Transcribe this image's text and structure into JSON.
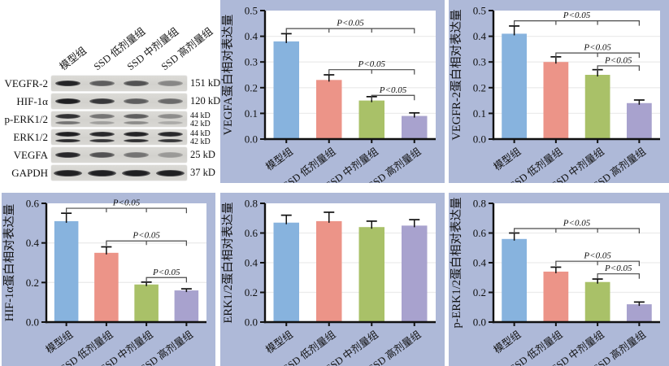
{
  "figure": {
    "background": "#ffffff",
    "panel_background": "#aeb9d8",
    "plot_background": "#ffffff",
    "gridline_color": "#ececec",
    "axis_color": "#111111",
    "bracket_color": "#4a4a4a"
  },
  "groups": [
    "模型组",
    "SSD 低剂量组",
    "SSD 中剂量组",
    "SSD 高剂量组"
  ],
  "bar_colors": [
    "#87b3de",
    "#ec9488",
    "#a9c168",
    "#a8a2ce"
  ],
  "blot": {
    "col_labels": [
      "模型组",
      "SSD 低剂量组",
      "SSD 中剂量组",
      "SSD 高剂量组"
    ],
    "rows": [
      {
        "label": "VEGFR-2",
        "kd_lines": [
          "151 kD"
        ],
        "bands": [
          [
            0.92
          ],
          [
            0.62
          ],
          [
            0.68
          ],
          [
            0.4
          ]
        ]
      },
      {
        "label": "HIF-1α",
        "kd_lines": [
          "120 kD"
        ],
        "bands": [
          [
            0.95
          ],
          [
            0.82
          ],
          [
            0.62
          ],
          [
            0.55
          ]
        ]
      },
      {
        "label": "p-ERK1/2",
        "kd_lines": [
          "44 kD",
          "42 kD"
        ],
        "bands": [
          [
            0.85,
            0.5
          ],
          [
            0.5,
            0.28
          ],
          [
            0.62,
            0.38
          ],
          [
            0.38,
            0.22
          ]
        ]
      },
      {
        "label": "ERK1/2",
        "kd_lines": [
          "44 kD",
          "42 kD"
        ],
        "bands": [
          [
            0.95,
            0.88
          ],
          [
            0.9,
            0.82
          ],
          [
            0.93,
            0.86
          ],
          [
            0.9,
            0.82
          ]
        ]
      },
      {
        "label": "VEGFA",
        "kd_lines": [
          "25 kD"
        ],
        "bands": [
          [
            0.9
          ],
          [
            0.68
          ],
          [
            0.5
          ],
          [
            0.3
          ]
        ]
      },
      {
        "label": "GAPDH",
        "kd_lines": [
          "37 kD"
        ],
        "bands": [
          [
            0.95
          ],
          [
            0.95
          ],
          [
            0.95
          ],
          [
            0.95
          ]
        ]
      }
    ]
  },
  "chart_data": [
    {
      "type": "bar",
      "panel": "vegfa",
      "title": "",
      "ylabel": "VEGFA蛋白相对表达量",
      "xlabel": "",
      "categories": [
        "模型组",
        "SSD 低剂量组",
        "SSD 中剂量组",
        "SSD 高剂量组"
      ],
      "values": [
        0.38,
        0.23,
        0.15,
        0.09
      ],
      "errors": [
        0.03,
        0.02,
        0.015,
        0.012
      ],
      "ylim": [
        0,
        0.5
      ],
      "ytick": 0.1,
      "grid": true,
      "legend": "none",
      "significance": [
        {
          "from": 0,
          "to": 3,
          "y": 0.43,
          "label": "P<0.05"
        },
        {
          "from": 1,
          "to": 3,
          "y": 0.27,
          "label": "P<0.05"
        },
        {
          "from": 2,
          "to": 3,
          "y": 0.17,
          "label": "P<0.05"
        }
      ]
    },
    {
      "type": "bar",
      "panel": "vegfr2",
      "title": "",
      "ylabel": "VEGFR-2蛋白相对表达量",
      "xlabel": "",
      "categories": [
        "模型组",
        "SSD 低剂量组",
        "SSD 中剂量组",
        "SSD 高剂量组"
      ],
      "values": [
        0.41,
        0.3,
        0.25,
        0.14
      ],
      "errors": [
        0.03,
        0.02,
        0.02,
        0.012
      ],
      "ylim": [
        0,
        0.5
      ],
      "ytick": 0.1,
      "grid": true,
      "legend": "none",
      "significance": [
        {
          "from": 0,
          "to": 3,
          "y": 0.46,
          "label": "P<0.05"
        },
        {
          "from": 1,
          "to": 3,
          "y": 0.335,
          "label": "P<0.05"
        },
        {
          "from": 2,
          "to": 3,
          "y": 0.285,
          "label": "P<0.05"
        }
      ]
    },
    {
      "type": "bar",
      "panel": "hif1a",
      "title": "",
      "ylabel": "HIF-1α蛋白相对表达量",
      "xlabel": "",
      "categories": [
        "模型组",
        "SSD 低剂量组",
        "SSD 中剂量组",
        "SSD 高剂量组"
      ],
      "values": [
        0.51,
        0.35,
        0.19,
        0.16
      ],
      "errors": [
        0.04,
        0.03,
        0.012,
        0.008
      ],
      "ylim": [
        0,
        0.6
      ],
      "ytick": 0.2,
      "grid": true,
      "legend": "none",
      "significance": [
        {
          "from": 0,
          "to": 3,
          "y": 0.575,
          "label": "P<0.05"
        },
        {
          "from": 1,
          "to": 3,
          "y": 0.41,
          "label": "P<0.05"
        },
        {
          "from": 2,
          "to": 3,
          "y": 0.225,
          "label": "P<0.05"
        }
      ]
    },
    {
      "type": "bar",
      "panel": "erk12",
      "title": "",
      "ylabel": "ERK1/2蛋白相对表达量",
      "xlabel": "",
      "categories": [
        "模型组",
        "SSD 低剂量组",
        "SSD 中剂量组",
        "SSD 高剂量组"
      ],
      "values": [
        0.67,
        0.68,
        0.64,
        0.65
      ],
      "errors": [
        0.05,
        0.06,
        0.04,
        0.04
      ],
      "ylim": [
        0,
        0.8
      ],
      "ytick": 0.2,
      "grid": true,
      "legend": "none",
      "significance": []
    },
    {
      "type": "bar",
      "panel": "perk12",
      "title": "",
      "ylabel": "p-ERK1/2蛋白相对表达量",
      "xlabel": "",
      "categories": [
        "模型组",
        "SSD 低剂量组",
        "SSD 中剂量组",
        "SSD 高剂量组"
      ],
      "values": [
        0.56,
        0.34,
        0.27,
        0.12
      ],
      "errors": [
        0.04,
        0.03,
        0.02,
        0.015
      ],
      "ylim": [
        0,
        0.8
      ],
      "ytick": 0.2,
      "grid": true,
      "legend": "none",
      "significance": [
        {
          "from": 0,
          "to": 3,
          "y": 0.63,
          "label": "P<0.05"
        },
        {
          "from": 1,
          "to": 3,
          "y": 0.41,
          "label": "P<0.05"
        },
        {
          "from": 2,
          "to": 3,
          "y": 0.325,
          "label": "P<0.05"
        }
      ]
    }
  ]
}
